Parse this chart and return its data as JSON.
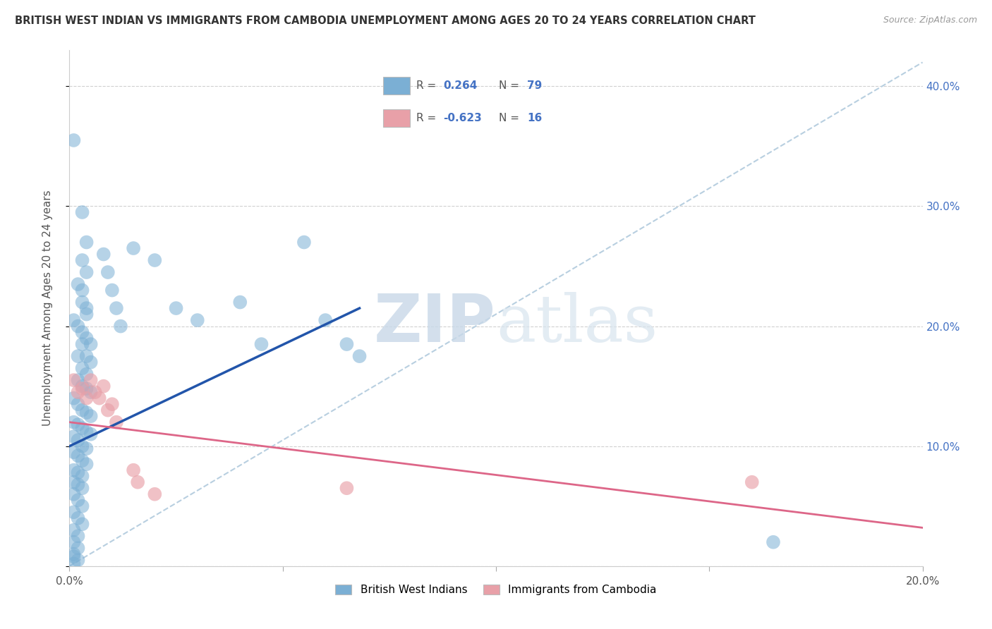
{
  "title": "BRITISH WEST INDIAN VS IMMIGRANTS FROM CAMBODIA UNEMPLOYMENT AMONG AGES 20 TO 24 YEARS CORRELATION CHART",
  "source": "Source: ZipAtlas.com",
  "ylabel": "Unemployment Among Ages 20 to 24 years",
  "xlim": [
    0.0,
    0.2
  ],
  "ylim": [
    0.0,
    0.43
  ],
  "blue_color": "#7bafd4",
  "pink_color": "#e8a0a8",
  "blue_line_color": "#2255aa",
  "pink_line_color": "#dd6688",
  "dashed_line_color": "#b8cfe0",
  "blue_R": "0.264",
  "blue_N": "79",
  "pink_R": "-0.623",
  "pink_N": "16",
  "watermark_zip": "ZIP",
  "watermark_atlas": "atlas",
  "legend_blue_label": "British West Indians",
  "legend_pink_label": "Immigrants from Cambodia",
  "blue_scatter": [
    [
      0.001,
      0.355
    ],
    [
      0.003,
      0.295
    ],
    [
      0.004,
      0.27
    ],
    [
      0.003,
      0.255
    ],
    [
      0.004,
      0.245
    ],
    [
      0.002,
      0.235
    ],
    [
      0.003,
      0.23
    ],
    [
      0.003,
      0.22
    ],
    [
      0.004,
      0.215
    ],
    [
      0.004,
      0.21
    ],
    [
      0.001,
      0.205
    ],
    [
      0.002,
      0.2
    ],
    [
      0.003,
      0.195
    ],
    [
      0.004,
      0.19
    ],
    [
      0.003,
      0.185
    ],
    [
      0.005,
      0.185
    ],
    [
      0.002,
      0.175
    ],
    [
      0.004,
      0.175
    ],
    [
      0.005,
      0.17
    ],
    [
      0.003,
      0.165
    ],
    [
      0.004,
      0.16
    ],
    [
      0.002,
      0.155
    ],
    [
      0.003,
      0.15
    ],
    [
      0.004,
      0.148
    ],
    [
      0.005,
      0.145
    ],
    [
      0.001,
      0.14
    ],
    [
      0.002,
      0.135
    ],
    [
      0.003,
      0.13
    ],
    [
      0.004,
      0.128
    ],
    [
      0.005,
      0.125
    ],
    [
      0.001,
      0.12
    ],
    [
      0.002,
      0.118
    ],
    [
      0.003,
      0.115
    ],
    [
      0.004,
      0.112
    ],
    [
      0.005,
      0.11
    ],
    [
      0.001,
      0.108
    ],
    [
      0.002,
      0.105
    ],
    [
      0.003,
      0.1
    ],
    [
      0.004,
      0.098
    ],
    [
      0.001,
      0.095
    ],
    [
      0.002,
      0.092
    ],
    [
      0.003,
      0.088
    ],
    [
      0.004,
      0.085
    ],
    [
      0.001,
      0.08
    ],
    [
      0.002,
      0.078
    ],
    [
      0.003,
      0.075
    ],
    [
      0.001,
      0.07
    ],
    [
      0.002,
      0.068
    ],
    [
      0.003,
      0.065
    ],
    [
      0.001,
      0.06
    ],
    [
      0.002,
      0.055
    ],
    [
      0.003,
      0.05
    ],
    [
      0.001,
      0.045
    ],
    [
      0.002,
      0.04
    ],
    [
      0.003,
      0.035
    ],
    [
      0.001,
      0.03
    ],
    [
      0.002,
      0.025
    ],
    [
      0.001,
      0.02
    ],
    [
      0.002,
      0.015
    ],
    [
      0.001,
      0.01
    ],
    [
      0.008,
      0.26
    ],
    [
      0.009,
      0.245
    ],
    [
      0.01,
      0.23
    ],
    [
      0.011,
      0.215
    ],
    [
      0.012,
      0.2
    ],
    [
      0.015,
      0.265
    ],
    [
      0.02,
      0.255
    ],
    [
      0.025,
      0.215
    ],
    [
      0.03,
      0.205
    ],
    [
      0.04,
      0.22
    ],
    [
      0.045,
      0.185
    ],
    [
      0.055,
      0.27
    ],
    [
      0.06,
      0.205
    ],
    [
      0.065,
      0.185
    ],
    [
      0.068,
      0.175
    ],
    [
      0.165,
      0.02
    ],
    [
      0.001,
      0.002
    ],
    [
      0.002,
      0.005
    ],
    [
      0.001,
      0.008
    ]
  ],
  "pink_scatter": [
    [
      0.001,
      0.155
    ],
    [
      0.002,
      0.145
    ],
    [
      0.003,
      0.148
    ],
    [
      0.004,
      0.14
    ],
    [
      0.005,
      0.155
    ],
    [
      0.006,
      0.145
    ],
    [
      0.007,
      0.14
    ],
    [
      0.008,
      0.15
    ],
    [
      0.009,
      0.13
    ],
    [
      0.01,
      0.135
    ],
    [
      0.011,
      0.12
    ],
    [
      0.015,
      0.08
    ],
    [
      0.016,
      0.07
    ],
    [
      0.02,
      0.06
    ],
    [
      0.065,
      0.065
    ],
    [
      0.16,
      0.07
    ]
  ],
  "blue_trend_x": [
    0.0,
    0.068
  ],
  "blue_trend_y": [
    0.1,
    0.215
  ],
  "pink_trend_x": [
    0.0,
    0.2
  ],
  "pink_trend_y": [
    0.12,
    0.032
  ],
  "dashed_trend_x": [
    0.0,
    0.2
  ],
  "dashed_trend_y": [
    0.0,
    0.42
  ]
}
